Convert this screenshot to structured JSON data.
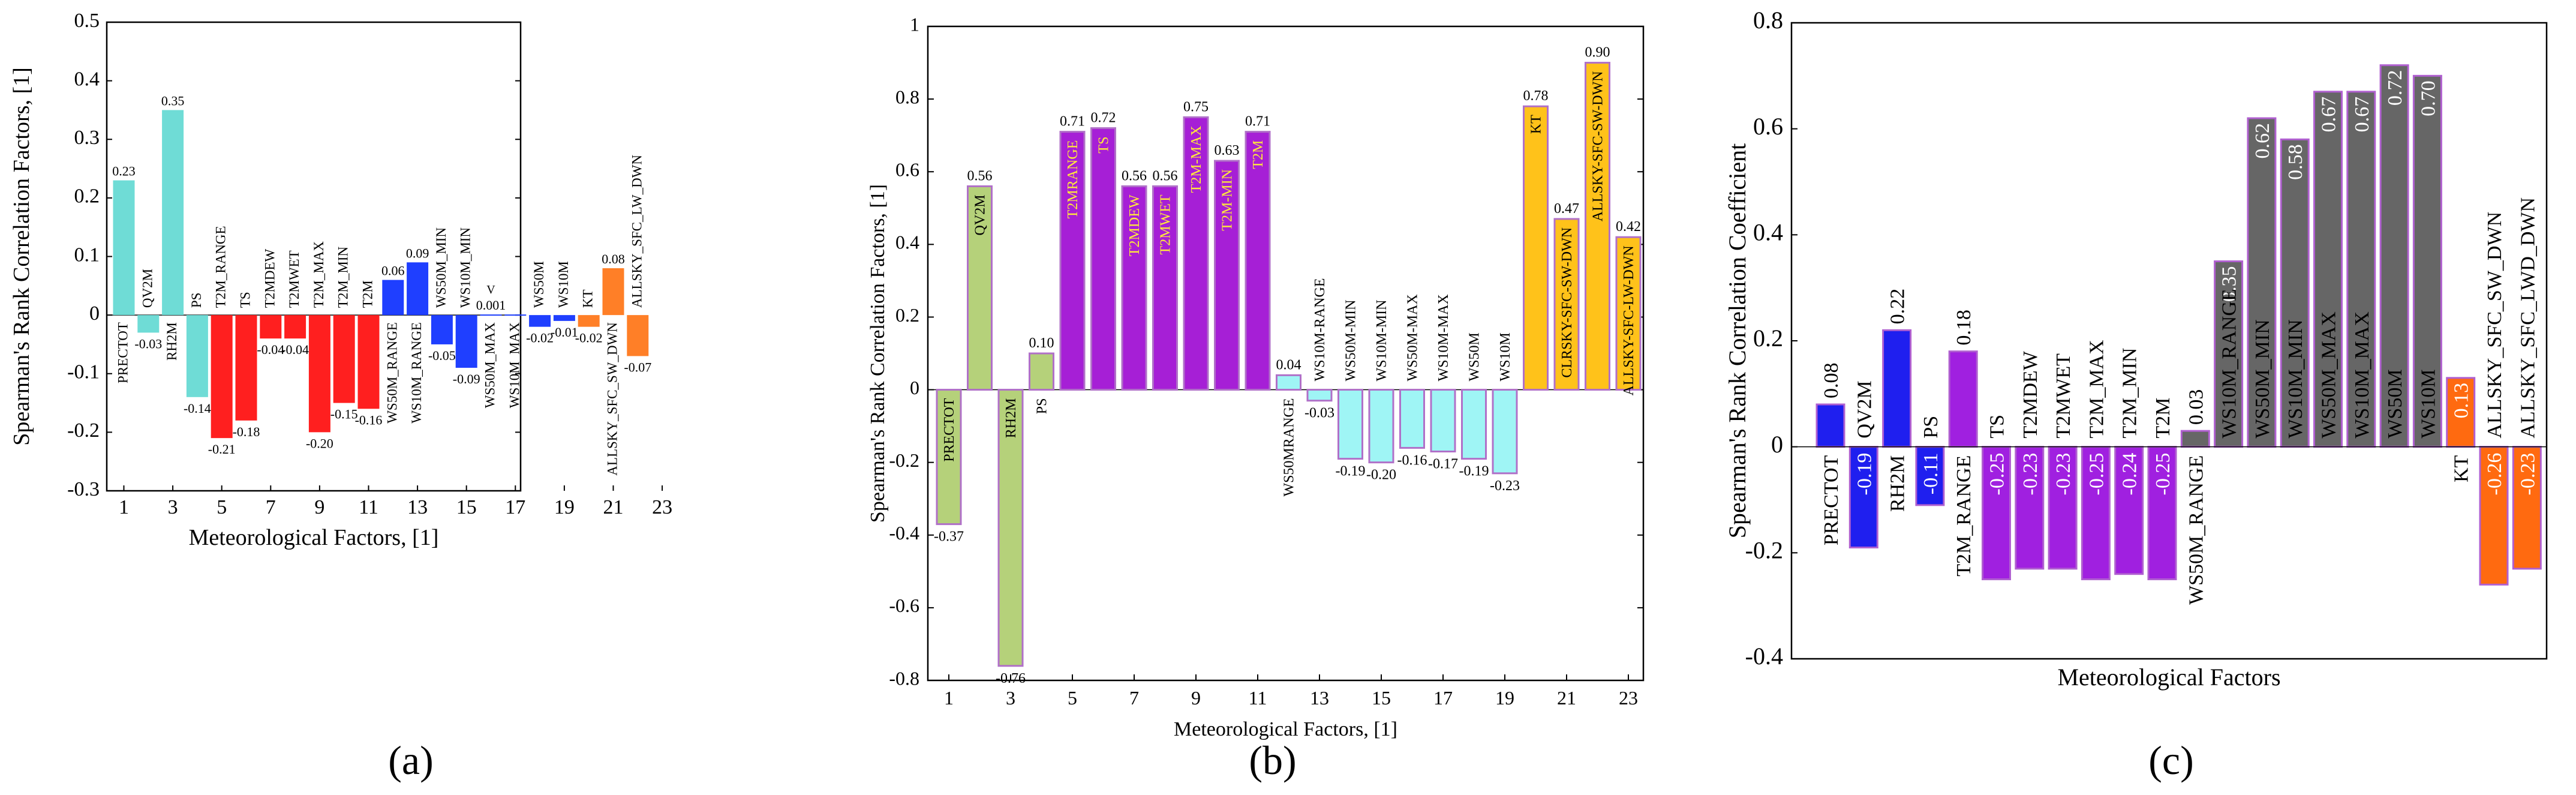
{
  "colors": {
    "a_cyan": "#6FDCD6",
    "a_red": "#FF1F1F",
    "a_blue": "#1F3FFF",
    "a_orange": "#FF7F27",
    "b_green": "#B5D17A",
    "b_purple": "#A61FD6",
    "b_cyan": "#9FF5F5",
    "b_gold": "#FFC21A",
    "b_edge": "#B070C8",
    "b_inner_label": "#FFEA3A",
    "c_blue": "#1F1FEF",
    "c_purple": "#A020E0",
    "c_gray": "#666666",
    "c_orange": "#FF6A10",
    "c_edge": "#B060D0"
  },
  "chart_data": [
    {
      "panel": "(a)",
      "type": "bar",
      "title": "",
      "xlabel": "Meteorological Factors, [1]",
      "ylabel": "Spearman's Rank Correlation Factors, [1]",
      "ylim": [
        -0.3,
        0.5
      ],
      "yticks": [
        "-0.3",
        "-0.2",
        "-0.1",
        "0",
        "0.1",
        "0.2",
        "0.3",
        "0.4",
        "0.5"
      ],
      "xticks": [
        "1",
        "3",
        "5",
        "7",
        "9",
        "11",
        "13",
        "15",
        "17",
        "19",
        "21",
        "23"
      ],
      "categories": [
        "PRECTOT",
        "QV2M",
        "RH2M",
        "PS",
        "T2M_RANGE",
        "TS",
        "T2MDEW",
        "T2MWET",
        "T2M_MAX",
        "T2M_MIN",
        "T2M",
        "WS50M_RANGE",
        "WS10M_RANGE",
        "WS50M_MIN",
        "WS10M_MIN",
        "WS50M_MAX",
        "WS10M_MAX",
        "WS50M",
        "WS10M",
        "KT",
        "ALLSKY_SFC_SW_DWN",
        "ALLSKY_SFC_LW_DWN"
      ],
      "values": [
        0.23,
        -0.03,
        0.35,
        -0.14,
        -0.21,
        -0.18,
        -0.04,
        -0.04,
        -0.2,
        -0.15,
        -0.16,
        0.06,
        0.09,
        -0.05,
        -0.09,
        0.001,
        0.001,
        -0.02,
        -0.01,
        -0.02,
        0.08,
        -0.07
      ],
      "value_labels": [
        "0.23",
        "-0.03",
        "0.35",
        "-0.14",
        "-0.21",
        "-0.18",
        "-0.04",
        "-0.04",
        "-0.20",
        "-0.15",
        "-0.16",
        "0.06",
        "0.09",
        "-0.05",
        "-0.09",
        "0.001",
        "",
        "-0.02",
        "-0.01",
        "-0.02",
        "0.08",
        "-0.07"
      ],
      "groups": [
        "a_cyan",
        "a_cyan",
        "a_cyan",
        "a_cyan",
        "a_red",
        "a_red",
        "a_red",
        "a_red",
        "a_red",
        "a_red",
        "a_red",
        "a_blue",
        "a_blue",
        "a_blue",
        "a_blue",
        "a_blue",
        "a_blue",
        "a_blue",
        "a_blue",
        "a_orange",
        "a_orange",
        "a_orange"
      ],
      "annotations": [
        "V"
      ]
    },
    {
      "panel": "(b)",
      "type": "bar",
      "title": "",
      "xlabel": "Meteorological Factors, [1]",
      "ylabel": "Spearman's Rank Correlation Factors, [1]",
      "ylim": [
        -0.8,
        1.0
      ],
      "yticks": [
        "-0.8",
        "-0.6",
        "-0.4",
        "-0.2",
        "0",
        "0.2",
        "0.4",
        "0.6",
        "0.8",
        "1"
      ],
      "xticks": [
        "1",
        "3",
        "5",
        "7",
        "9",
        "11",
        "13",
        "15",
        "17",
        "19",
        "21",
        "23"
      ],
      "categories": [
        "PRECTOT",
        "QV2M",
        "RH2M",
        "PS",
        "T2MRANGE",
        "TS",
        "T2MDEW",
        "T2MWET",
        "T2M-MAX",
        "T2M-MIN",
        "T2M",
        "WS50MRANGE",
        "WS10M-RANGE",
        "WS50M-MIN",
        "WS10M-MIN",
        "WS50M-MAX",
        "WS10M-MAX",
        "WS50M",
        "WS10M",
        "KT",
        "CLRSKY-SFC-SW-DWN",
        "ALLSKY-SFC-SW-DWN",
        "ALLSKY-SFC-LW-DWN"
      ],
      "values": [
        -0.37,
        0.56,
        -0.76,
        0.1,
        0.71,
        0.72,
        0.56,
        0.56,
        0.75,
        0.63,
        0.71,
        0.04,
        -0.03,
        -0.19,
        -0.2,
        -0.16,
        -0.17,
        -0.19,
        -0.23,
        0.78,
        0.47,
        0.9,
        0.42
      ],
      "value_labels": [
        "-0.37",
        "0.56",
        "-0.76",
        "0.10",
        "0.71",
        "0.72",
        "0.56",
        "0.56",
        "0.75",
        "0.63",
        "0.71",
        "0.04",
        "-0.03",
        "-0.19",
        "-0.20",
        "-0.16",
        "-0.17",
        "-0.19",
        "-0.23",
        "0.78",
        "0.47",
        "0.90",
        "0.42"
      ],
      "groups": [
        "b_green",
        "b_green",
        "b_green",
        "b_green",
        "b_purple",
        "b_purple",
        "b_purple",
        "b_purple",
        "b_purple",
        "b_purple",
        "b_purple",
        "b_cyan",
        "b_cyan",
        "b_cyan",
        "b_cyan",
        "b_cyan",
        "b_cyan",
        "b_cyan",
        "b_cyan",
        "b_gold",
        "b_gold",
        "b_gold",
        "b_gold"
      ]
    },
    {
      "panel": "(c)",
      "type": "bar",
      "title": "",
      "xlabel": "Meteorological Factors",
      "ylabel": "Spearman's Rank Correlation Coefficient",
      "ylim": [
        -0.4,
        0.8
      ],
      "yticks": [
        "-0.4",
        "-0.2",
        "0",
        "0.2",
        "0.4",
        "0.6",
        "0.8"
      ],
      "categories": [
        "PRECTOT",
        "QV2M",
        "RH2M",
        "PS",
        "T2M_RANGE",
        "TS",
        "T2MDEW",
        "T2MWET",
        "T2M_MAX",
        "T2M_MIN",
        "T2M",
        "WS50M_RANGE",
        "WS10M_RANGE",
        "WS50M_MIN",
        "WS10M_MIN",
        "WS50M_MAX",
        "WS10M_MAX",
        "WS50M",
        "WS10M",
        "KT",
        "ALLSKY_SFC_SW_DWN",
        "ALLSKY_SFC_LWD_DWN"
      ],
      "values": [
        0.08,
        -0.19,
        0.22,
        -0.11,
        0.18,
        -0.25,
        -0.23,
        -0.23,
        -0.25,
        -0.24,
        -0.25,
        0.03,
        0.35,
        0.62,
        0.58,
        0.67,
        0.67,
        0.72,
        0.7,
        0.13,
        -0.26,
        -0.23
      ],
      "value_labels": [
        "0.08",
        "-0.19",
        "0.22",
        "-0.11",
        "0.18",
        "-0.25",
        "-0.23",
        "-0.23",
        "-0.25",
        "-0.24",
        "-0.25",
        "0.03",
        "0.35",
        "0.62",
        "0.58",
        "0.67",
        "0.67",
        "0.72",
        "0.70",
        "0.13",
        "-0.26",
        "-0.23"
      ],
      "groups": [
        "c_blue",
        "c_blue",
        "c_blue",
        "c_blue",
        "c_purple",
        "c_purple",
        "c_purple",
        "c_purple",
        "c_purple",
        "c_purple",
        "c_purple",
        "c_gray",
        "c_gray",
        "c_gray",
        "c_gray",
        "c_gray",
        "c_gray",
        "c_gray",
        "c_gray",
        "c_orange",
        "c_orange",
        "c_orange"
      ]
    }
  ]
}
